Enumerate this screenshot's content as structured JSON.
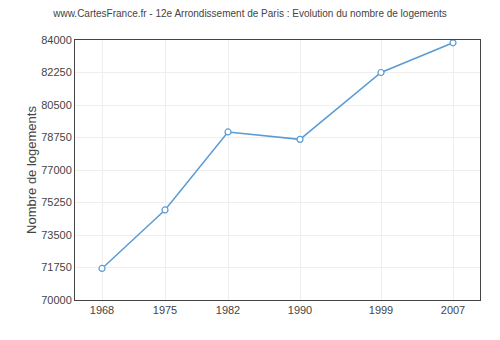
{
  "chart_data": {
    "type": "line",
    "title": "www.CartesFrance.fr - 12e Arrondissement de Paris : Evolution du nombre de logements",
    "ylabel": "Nombre de logements",
    "x": [
      1968,
      1975,
      1982,
      1990,
      1999,
      2007
    ],
    "values": [
      71700,
      74850,
      79050,
      78650,
      82250,
      83850
    ],
    "color": "#5b9bd5",
    "marker": "circle",
    "xlim": [
      1965,
      2010
    ],
    "xticks": [
      1968,
      1975,
      1982,
      1990,
      1999,
      2007
    ],
    "ylim": [
      70000,
      84000
    ],
    "yticks": [
      70000,
      71750,
      73500,
      75250,
      77000,
      78750,
      80500,
      82250,
      84000
    ],
    "grid": true
  }
}
